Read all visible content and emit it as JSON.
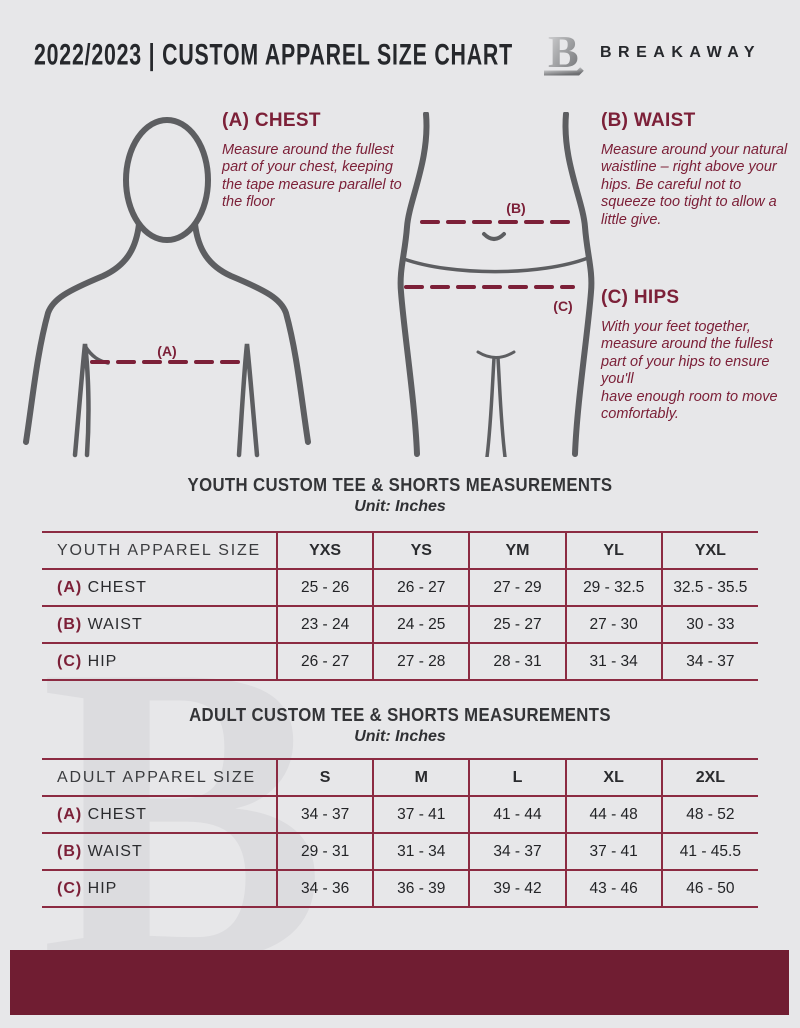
{
  "header": {
    "title": "2022/2023  |  CUSTOM APPAREL SIZE CHART",
    "brand": "BREAKAWAY",
    "logo_letter": "B"
  },
  "watermark_letter": "B",
  "measure_guide": {
    "chest": {
      "heading": "(A) CHEST",
      "body": "Measure around the fullest part of your chest, keeping the tape measure parallel to the floor"
    },
    "waist": {
      "heading": "(B) WAIST",
      "body": "Measure around your natural waistline – right above your hips. Be careful not to squeeze too tight to allow a little give."
    },
    "hips": {
      "heading": "(C) HIPS",
      "body": "With your feet together, measure around the fullest part of your hips to ensure you'll\nhave enough room to move comfortably."
    },
    "labels": {
      "chest": "(A)",
      "waist": "(B)",
      "hips": "(C)"
    }
  },
  "youth_table": {
    "title": "YOUTH CUSTOM TEE & SHORTS MEASUREMENTS",
    "unit": "Unit: Inches",
    "header": [
      "YOUTH APPAREL SIZE",
      "YXS",
      "YS",
      "YM",
      "YL",
      "YXL"
    ],
    "rows": [
      {
        "prefix": "(A)",
        "label": "CHEST",
        "values": [
          "25 - 26",
          "26 - 27",
          "27 - 29",
          "29 - 32.5",
          "32.5 - 35.5"
        ]
      },
      {
        "prefix": "(B)",
        "label": "WAIST",
        "values": [
          "23 - 24",
          "24 - 25",
          "25 - 27",
          "27 - 30",
          "30 - 33"
        ]
      },
      {
        "prefix": "(C)",
        "label": "HIP",
        "values": [
          "26 - 27",
          "27 - 28",
          "28 - 31",
          "31 - 34",
          "34 - 37"
        ]
      }
    ]
  },
  "adult_table": {
    "title": "ADULT CUSTOM TEE & SHORTS MEASUREMENTS",
    "unit": "Unit: Inches",
    "header": [
      "ADULT APPAREL SIZE",
      "S",
      "M",
      "L",
      "XL",
      "2XL"
    ],
    "rows": [
      {
        "prefix": "(A)",
        "label": "CHEST",
        "values": [
          "34 - 37",
          "37 - 41",
          "41 - 44",
          "44 - 48",
          "48 - 52"
        ]
      },
      {
        "prefix": "(B)",
        "label": "WAIST",
        "values": [
          "29 - 31",
          "31 - 34",
          "34 - 37",
          "37 - 41",
          "41 - 45.5"
        ]
      },
      {
        "prefix": "(C)",
        "label": "HIP",
        "values": [
          "34 - 36",
          "36 - 39",
          "39 - 42",
          "43 - 46",
          "46 - 50"
        ]
      }
    ]
  },
  "colors": {
    "background": "#e7e7e9",
    "maroon_text": "#7c2038",
    "table_border": "#8c2b42",
    "footer_bar": "#701d32",
    "figure_stroke": "#5d5e61",
    "title_text": "#26282c",
    "watermark": "#dcdcdf"
  }
}
